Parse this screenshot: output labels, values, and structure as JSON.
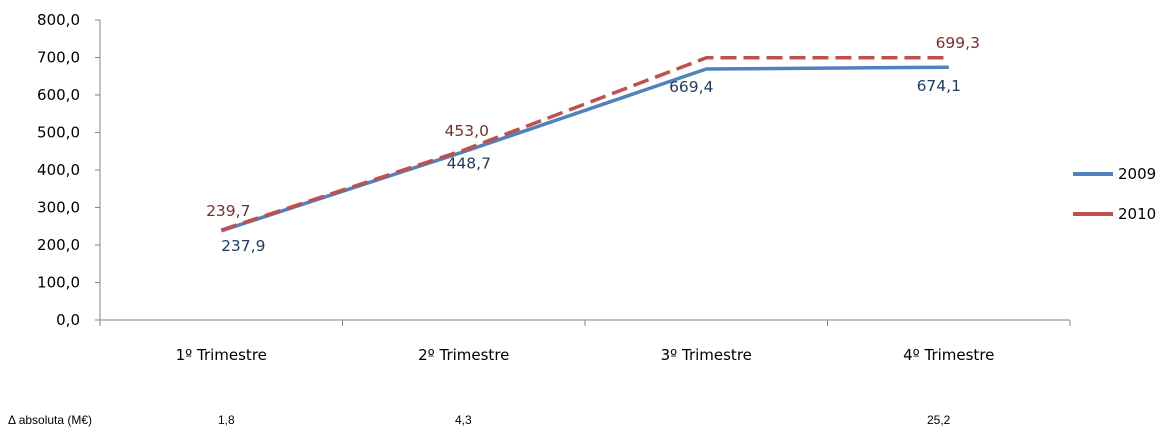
{
  "chart_data": {
    "type": "line",
    "categories": [
      "1º Trimestre",
      "2º Trimestre",
      "3º Trimestre",
      "4º Trimestre"
    ],
    "ylim": [
      0,
      800
    ],
    "yticks": [
      "0,0",
      "100,0",
      "200,0",
      "300,0",
      "400,0",
      "500,0",
      "600,0",
      "700,0",
      "800,0"
    ],
    "series": [
      {
        "name": "2009",
        "values": [
          237.9,
          448.7,
          669.4,
          674.1
        ],
        "labels": [
          "237,9",
          "448,7",
          "669,4",
          "674,1"
        ],
        "color": "#4F81BD",
        "dashed": false
      },
      {
        "name": "2010",
        "values": [
          239.7,
          453.0,
          699.3,
          699.3
        ],
        "labels": [
          "239,7",
          "453,0",
          "",
          "699,3"
        ],
        "color": "#C0504D",
        "dashed": true
      }
    ],
    "legend": "right"
  },
  "footer": {
    "label": "Δ absoluta (M€)",
    "values": [
      "1,8",
      "4,3",
      "",
      "25,2"
    ]
  }
}
